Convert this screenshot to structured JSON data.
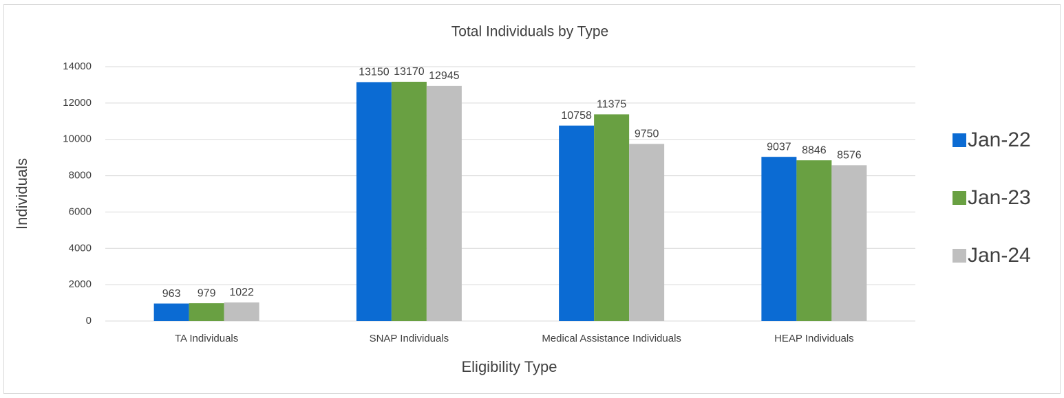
{
  "chart_data": {
    "type": "bar",
    "title": "Total Individuals by Type",
    "x_label": "Eligibility Type",
    "y_label": "Individuals",
    "categories": [
      "TA Individuals",
      "SNAP Individuals",
      "Medical Assistance Individuals",
      "HEAP Individuals"
    ],
    "series": [
      {
        "name": "Jan-22",
        "color": "#0b6bd3",
        "values": [
          963,
          13150,
          10758,
          9037
        ]
      },
      {
        "name": "Jan-23",
        "color": "#69a042",
        "values": [
          979,
          13170,
          11375,
          8846
        ]
      },
      {
        "name": "Jan-24",
        "color": "#bfbfbf",
        "values": [
          1022,
          12945,
          9750,
          8576
        ]
      }
    ],
    "ylim": [
      0,
      14000
    ],
    "yticks": [
      0,
      2000,
      4000,
      6000,
      8000,
      10000,
      12000,
      14000
    ],
    "grid": true,
    "legend": "right"
  }
}
